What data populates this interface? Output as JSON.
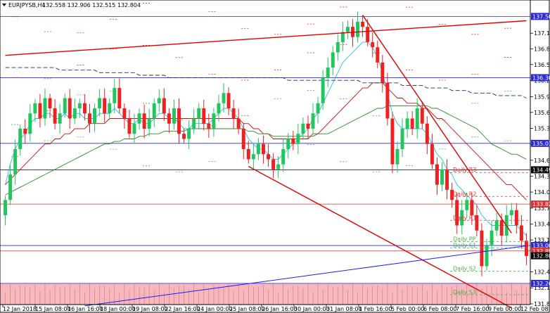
{
  "header": {
    "symbol_label": "EURJPYSB,H4",
    "ohlc": "132.558 132.906 132.515 132.804"
  },
  "colors": {
    "bull": "#22c55e",
    "bear": "#ef2020",
    "channel": "#e00000",
    "support_line": "#1a1aff",
    "hline": "#2b2bd6",
    "ma_fast": "#22c1dd",
    "ma_mid": "#d01010",
    "ma_slow": "#2a8a2a",
    "ma_long": "#1a2a6a",
    "pivot_red": "#e03030",
    "pivot_green": "#4caf50",
    "volume_bg": "#f6b8bd"
  },
  "chart_data": {
    "type": "candlestick",
    "symbol": "EURJPYSB",
    "timeframe": "H4",
    "last": {
      "open": 132.558,
      "high": 132.906,
      "low": 132.515,
      "close": 132.804
    },
    "ylim": [
      131.86,
      137.8
    ],
    "yticks": [
      137.175,
      136.87,
      136.56,
      136.245,
      135.93,
      135.62,
      135.305,
      134.995,
      134.68,
      134.365,
      134.055,
      133.74,
      133.425,
      133.115,
      132.49,
      132.175,
      131.86
    ],
    "xticks": [
      "12 Jan 2018",
      "15 Jan 08:00",
      "16 Jan 16:00",
      "18 Jan 00:00",
      "19 Jan 08:00",
      "22 Jan 16:00",
      "24 Jan 00:00",
      "25 Jan 08:00",
      "26 Jan 16:00",
      "30 Jan 00:00",
      "31 Jan 08:00",
      "1 Feb 16:00",
      "5 Feb 00:00",
      "6 Feb 08:00",
      "7 Feb 16:00",
      "9 Feb 00:00",
      "12 Feb 08:00"
    ],
    "price_levels": [
      {
        "value": 137.505,
        "label": "137.505",
        "color": "#2b2bd6"
      },
      {
        "value": 136.302,
        "label": "136.302",
        "color": "#2b2bd6"
      },
      {
        "value": 135.012,
        "label": "135.012",
        "color": "#2b2bd6"
      },
      {
        "value": 134.493,
        "label": "134.493",
        "color": "#000000"
      },
      {
        "value": 133.82,
        "label": "133.820",
        "color": "#e03030"
      },
      {
        "value": 133.006,
        "label": "133.006",
        "color": "#2b2bd6"
      },
      {
        "value": 132.899,
        "label": "132.899",
        "color": "#e03030"
      },
      {
        "value": 132.804,
        "label": "132.804",
        "color": "#000000"
      },
      {
        "value": 132.262,
        "label": "132.262",
        "color": "#2b2bd6"
      }
    ],
    "pivots": [
      {
        "name": "Daily R3",
        "value": 134.44,
        "color": "#e03030"
      },
      {
        "name": "Daily R2",
        "value": 133.97,
        "color": "#e03030"
      },
      {
        "name": "Daily R1",
        "value": 133.5,
        "color": "#e03030"
      },
      {
        "name": "Daily PP",
        "value": 133.08,
        "color": "#4caf50"
      },
      {
        "name": "Daily S1",
        "value": 132.96,
        "color": "#4caf50"
      },
      {
        "name": "Daily S2",
        "value": 132.5,
        "color": "#4caf50"
      },
      {
        "name": "Daily S3",
        "value": 132.04,
        "color": "#4caf50"
      }
    ],
    "closes": [
      133.9,
      134.4,
      134.9,
      135.3,
      135.2,
      135.6,
      135.8,
      135.5,
      135.9,
      135.7,
      135.4,
      135.6,
      135.9,
      135.5,
      135.7,
      135.8,
      135.6,
      135.4,
      135.7,
      135.9,
      135.6,
      135.8,
      136.1,
      135.7,
      135.5,
      135.2,
      135.4,
      135.6,
      135.3,
      135.5,
      135.8,
      135.9,
      135.6,
      135.4,
      135.7,
      135.2,
      135.1,
      135.3,
      135.5,
      135.7,
      135.4,
      135.3,
      135.6,
      135.8,
      136.0,
      135.7,
      135.5,
      135.3,
      134.9,
      134.7,
      134.8,
      135.0,
      134.8,
      134.7,
      134.5,
      134.6,
      134.9,
      135.1,
      135.0,
      135.2,
      135.4,
      135.3,
      135.6,
      135.8,
      136.3,
      136.5,
      136.8,
      137.0,
      137.2,
      137.3,
      137.1,
      137.4,
      137.3,
      137.0,
      136.9,
      136.6,
      136.2,
      135.5,
      134.6,
      134.9,
      135.3,
      135.5,
      135.3,
      135.7,
      135.4,
      135.0,
      134.6,
      134.2,
      134.5,
      134.1,
      133.9,
      133.4,
      133.7,
      133.9,
      133.6,
      133.3,
      132.6,
      133.0,
      133.3,
      133.5,
      133.2,
      133.6,
      133.7,
      133.4,
      133.1,
      132.8
    ],
    "moving_averages": [
      {
        "color_key": "ma_fast",
        "values": [
          134.2,
          134.6,
          134.9,
          135.1,
          135.2,
          135.4,
          135.5,
          135.5,
          135.6,
          135.6,
          135.5,
          135.5,
          135.6,
          135.5,
          135.6,
          135.6,
          135.5,
          135.5,
          135.5,
          135.6,
          135.6,
          135.6,
          135.7,
          135.6,
          135.5,
          135.4,
          135.4,
          135.5,
          135.4,
          135.4,
          135.5,
          135.6,
          135.6,
          135.5,
          135.5,
          135.4,
          135.3,
          135.3,
          135.4,
          135.4,
          135.4,
          135.4,
          135.5,
          135.6,
          135.7,
          135.7,
          135.6,
          135.5,
          135.3,
          135.1,
          135.0,
          134.9,
          134.9,
          134.8,
          134.7,
          134.7,
          134.8,
          134.9,
          135.0,
          135.1,
          135.2,
          135.3,
          135.5,
          135.6,
          135.8,
          136.0,
          136.2,
          136.4,
          136.6,
          136.7,
          136.8,
          136.9,
          137.0,
          137.0,
          136.9,
          136.7,
          136.4,
          136.0,
          135.6,
          135.4,
          135.3,
          135.3,
          135.3,
          135.3,
          135.3,
          135.2,
          135.0,
          134.8,
          134.7,
          134.5,
          134.4,
          134.2,
          134.1,
          134.0,
          133.9,
          133.8,
          133.6,
          133.5,
          133.4,
          133.4,
          133.4,
          133.4,
          133.4,
          133.4,
          133.3,
          133.2
        ]
      },
      {
        "color_key": "ma_mid",
        "values": [
          134.2,
          134.3,
          134.4,
          134.5,
          134.6,
          134.7,
          134.8,
          134.9,
          135.0,
          135.0,
          135.1,
          135.1,
          135.2,
          135.2,
          135.3,
          135.3,
          135.3,
          135.4,
          135.4,
          135.4,
          135.4,
          135.5,
          135.5,
          135.5,
          135.5,
          135.5,
          135.5,
          135.5,
          135.5,
          135.5,
          135.5,
          135.5,
          135.5,
          135.5,
          135.5,
          135.5,
          135.5,
          135.5,
          135.5,
          135.5,
          135.5,
          135.5,
          135.5,
          135.5,
          135.5,
          135.5,
          135.5,
          135.5,
          135.4,
          135.4,
          135.3,
          135.3,
          135.2,
          135.2,
          135.1,
          135.1,
          135.1,
          135.1,
          135.1,
          135.1,
          135.1,
          135.1,
          135.2,
          135.2,
          135.3,
          135.4,
          135.5,
          135.6,
          135.7,
          135.8,
          135.9,
          136.0,
          136.1,
          136.1,
          136.2,
          136.2,
          136.2,
          136.1,
          136.0,
          135.9,
          135.9,
          135.8,
          135.8,
          135.8,
          135.7,
          135.7,
          135.6,
          135.5,
          135.5,
          135.4,
          135.3,
          135.2,
          135.1,
          135.0,
          134.9,
          134.8,
          134.7,
          134.6,
          134.5,
          134.4,
          134.3,
          134.2,
          134.2,
          134.1,
          134.0,
          133.9
        ]
      },
      {
        "color_key": "ma_slow",
        "values": [
          134.0,
          134.05,
          134.1,
          134.15,
          134.2,
          134.25,
          134.3,
          134.35,
          134.4,
          134.45,
          134.5,
          134.55,
          134.6,
          134.65,
          134.7,
          134.75,
          134.8,
          134.85,
          134.9,
          134.95,
          135.0,
          135.0,
          135.05,
          135.05,
          135.1,
          135.1,
          135.1,
          135.15,
          135.15,
          135.2,
          135.2,
          135.2,
          135.25,
          135.25,
          135.25,
          135.25,
          135.25,
          135.3,
          135.3,
          135.3,
          135.3,
          135.3,
          135.3,
          135.3,
          135.3,
          135.3,
          135.3,
          135.3,
          135.3,
          135.25,
          135.25,
          135.2,
          135.2,
          135.2,
          135.15,
          135.15,
          135.15,
          135.15,
          135.15,
          135.15,
          135.15,
          135.15,
          135.15,
          135.2,
          135.2,
          135.2,
          135.25,
          135.3,
          135.35,
          135.4,
          135.45,
          135.5,
          135.55,
          135.6,
          135.65,
          135.7,
          135.7,
          135.75,
          135.75,
          135.75,
          135.75,
          135.75,
          135.75,
          135.75,
          135.75,
          135.75,
          135.7,
          135.7,
          135.65,
          135.6,
          135.55,
          135.5,
          135.45,
          135.4,
          135.35,
          135.3,
          135.2,
          135.1,
          135.0,
          134.95,
          134.9,
          134.85,
          134.8,
          134.8,
          134.75,
          134.7
        ]
      },
      {
        "color_key": "ma_long",
        "dashed": true,
        "values": [
          136.5,
          136.5,
          136.5,
          136.5,
          136.5,
          136.5,
          136.5,
          136.5,
          136.5,
          136.5,
          136.5,
          136.45,
          136.45,
          136.45,
          136.45,
          136.45,
          136.45,
          136.45,
          136.45,
          136.4,
          136.4,
          136.4,
          136.4,
          136.4,
          136.4,
          136.4,
          136.4,
          136.35,
          136.35,
          136.35,
          136.35,
          136.35,
          136.35,
          136.3,
          136.3,
          136.3,
          136.3,
          136.3,
          136.3,
          136.3,
          136.3,
          136.3,
          136.3,
          136.3,
          136.3,
          136.3,
          136.3,
          136.3,
          136.3,
          136.3,
          136.3,
          136.3,
          136.3,
          136.3,
          136.3,
          136.3,
          136.3,
          136.25,
          136.25,
          136.25,
          136.25,
          136.25,
          136.25,
          136.25,
          136.25,
          136.25,
          136.25,
          136.25,
          136.25,
          136.25,
          136.25,
          136.25,
          136.2,
          136.2,
          136.2,
          136.2,
          136.2,
          136.2,
          136.2,
          136.2,
          136.15,
          136.15,
          136.15,
          136.15,
          136.15,
          136.1,
          136.1,
          136.1,
          136.1,
          136.1,
          136.05,
          136.05,
          136.05,
          136.05,
          136.0,
          136.0,
          136.0,
          136.0,
          136.0,
          135.95,
          135.95,
          135.95,
          135.95,
          135.95,
          135.95,
          135.9
        ]
      }
    ],
    "trendlines": [
      {
        "name": "upper-rising",
        "from": [
          0,
          136.74
        ],
        "to": [
          105,
          137.42
        ],
        "color_key": "channel"
      },
      {
        "name": "falling-resistance",
        "from": [
          72,
          137.53
        ],
        "to": [
          102,
          133.25
        ],
        "color_key": "channel"
      },
      {
        "name": "falling-support",
        "from": [
          49,
          134.56
        ],
        "to": [
          102,
          131.78
        ],
        "color_key": "channel"
      },
      {
        "name": "rising-support",
        "from": [
          16,
          131.82
        ],
        "to": [
          105,
          133.0
        ],
        "color_key": "support_line"
      }
    ]
  }
}
